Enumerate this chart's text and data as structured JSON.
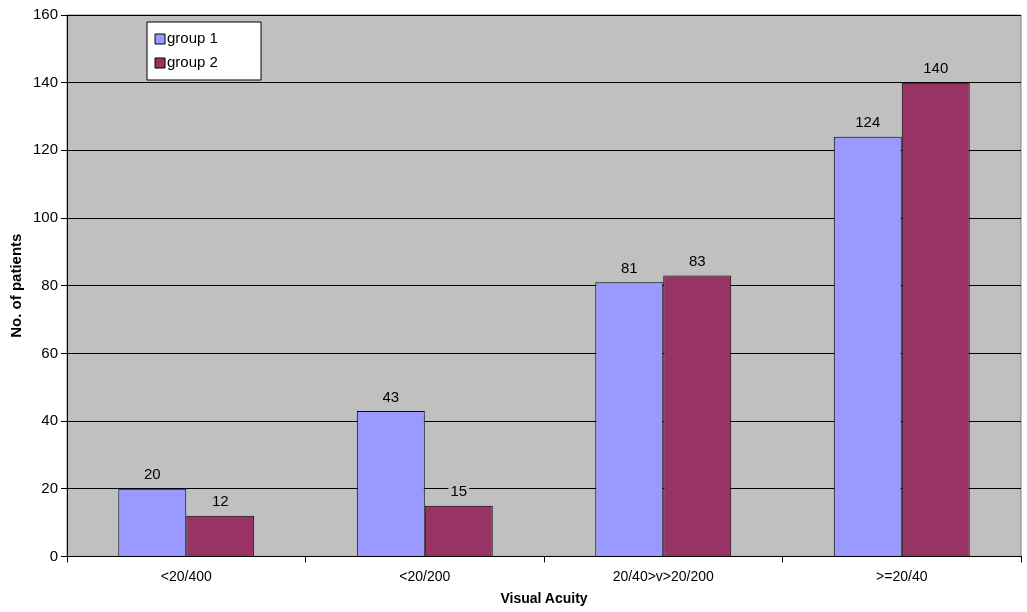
{
  "chart_data": {
    "type": "bar",
    "xlabel": "Visual Acuity",
    "ylabel": "No. of patients",
    "categories": [
      "<20/400",
      "<20/200",
      "20/40>v>20/200",
      ">=20/40"
    ],
    "series": [
      {
        "name": "group 1",
        "color": "#9999ff",
        "values": [
          20,
          43,
          81,
          124
        ]
      },
      {
        "name": "group 2",
        "color": "#993366",
        "values": [
          12,
          15,
          83,
          140
        ]
      }
    ],
    "ylim": [
      0,
      160
    ],
    "yticks": [
      0,
      20,
      40,
      60,
      80,
      100,
      120,
      140,
      160
    ],
    "grid": "y",
    "legend": "top left",
    "data_labels": true
  }
}
